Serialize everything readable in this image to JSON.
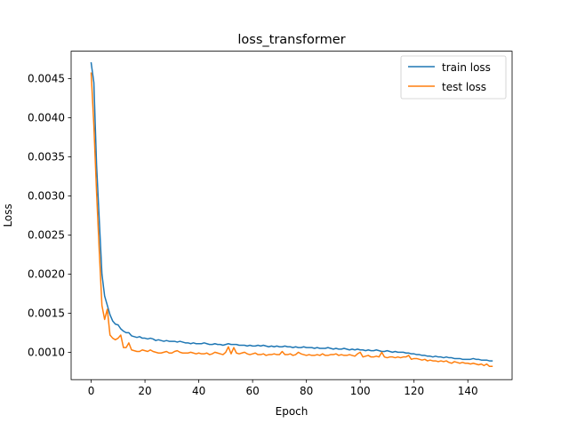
{
  "chart_data": {
    "type": "line",
    "title": "loss_transformer",
    "xlabel": "Epoch",
    "ylabel": "Loss",
    "xlim": [
      -7.45,
      156.45
    ],
    "ylim": [
      0.00065,
      0.00485
    ],
    "x_ticks": [
      0,
      20,
      40,
      60,
      80,
      100,
      120,
      140
    ],
    "x_tick_labels": [
      "0",
      "20",
      "40",
      "60",
      "80",
      "100",
      "120",
      "140"
    ],
    "y_ticks": [
      0.001,
      0.0015,
      0.002,
      0.0025,
      0.003,
      0.0035,
      0.004,
      0.0045
    ],
    "y_tick_labels": [
      "0.0010",
      "0.0015",
      "0.0020",
      "0.0025",
      "0.0030",
      "0.0035",
      "0.0040",
      "0.0045"
    ],
    "grid": false,
    "legend_position": "top-right",
    "series": [
      {
        "name": "train loss",
        "color": "#1f77b4",
        "x": [
          0,
          1,
          2,
          3,
          4,
          5,
          6,
          7,
          8,
          9,
          10,
          11,
          12,
          13,
          14,
          15,
          16,
          17,
          18,
          19,
          20,
          21,
          22,
          23,
          24,
          25,
          26,
          27,
          28,
          29,
          30,
          31,
          32,
          33,
          34,
          35,
          36,
          37,
          38,
          39,
          40,
          41,
          42,
          43,
          44,
          45,
          46,
          47,
          48,
          49,
          50,
          51,
          52,
          53,
          54,
          55,
          56,
          57,
          58,
          59,
          60,
          61,
          62,
          63,
          64,
          65,
          66,
          67,
          68,
          69,
          70,
          71,
          72,
          73,
          74,
          75,
          76,
          77,
          78,
          79,
          80,
          81,
          82,
          83,
          84,
          85,
          86,
          87,
          88,
          89,
          90,
          91,
          92,
          93,
          94,
          95,
          96,
          97,
          98,
          99,
          100,
          101,
          102,
          103,
          104,
          105,
          106,
          107,
          108,
          109,
          110,
          111,
          112,
          113,
          114,
          115,
          116,
          117,
          118,
          119,
          120,
          121,
          122,
          123,
          124,
          125,
          126,
          127,
          128,
          129,
          130,
          131,
          132,
          133,
          134,
          135,
          136,
          137,
          138,
          139,
          140,
          141,
          142,
          143,
          144,
          145,
          146,
          147,
          148,
          149
        ],
        "y": [
          0.0047,
          0.00445,
          0.0034,
          0.0027,
          0.002,
          0.00172,
          0.0016,
          0.00148,
          0.0014,
          0.00136,
          0.00135,
          0.0013,
          0.00127,
          0.00125,
          0.00125,
          0.00121,
          0.0012,
          0.00119,
          0.0012,
          0.00118,
          0.00118,
          0.00117,
          0.00118,
          0.00117,
          0.00115,
          0.00116,
          0.00115,
          0.00114,
          0.00115,
          0.00114,
          0.00114,
          0.00114,
          0.00113,
          0.00114,
          0.00113,
          0.00112,
          0.00112,
          0.00111,
          0.00112,
          0.00111,
          0.00111,
          0.00111,
          0.00112,
          0.00111,
          0.0011,
          0.0011,
          0.00111,
          0.0011,
          0.0011,
          0.00109,
          0.0011,
          0.00111,
          0.0011,
          0.0011,
          0.0011,
          0.00109,
          0.00109,
          0.00109,
          0.00108,
          0.00109,
          0.00108,
          0.00108,
          0.00109,
          0.00108,
          0.00109,
          0.00108,
          0.00107,
          0.00108,
          0.00107,
          0.00108,
          0.00107,
          0.00107,
          0.00108,
          0.00107,
          0.00107,
          0.00106,
          0.00107,
          0.00106,
          0.00106,
          0.00107,
          0.00106,
          0.00106,
          0.00106,
          0.00105,
          0.00106,
          0.00105,
          0.00105,
          0.00105,
          0.00106,
          0.00105,
          0.00104,
          0.00105,
          0.00104,
          0.00104,
          0.00105,
          0.00104,
          0.00103,
          0.00104,
          0.00103,
          0.00104,
          0.00103,
          0.00103,
          0.00102,
          0.00103,
          0.00102,
          0.00102,
          0.00103,
          0.00102,
          0.00101,
          0.00101,
          0.00102,
          0.00101,
          0.001,
          0.00101,
          0.001,
          0.001,
          0.001,
          0.00099,
          0.00099,
          0.00098,
          0.00098,
          0.00097,
          0.00097,
          0.00096,
          0.00096,
          0.00095,
          0.00095,
          0.00094,
          0.00095,
          0.00094,
          0.00094,
          0.00093,
          0.00094,
          0.00093,
          0.00093,
          0.00092,
          0.00092,
          0.00092,
          0.00091,
          0.00091,
          0.00091,
          0.00091,
          0.00092,
          0.00091,
          0.00091,
          0.0009,
          0.0009,
          0.0009,
          0.00089,
          0.00089
        ]
      },
      {
        "name": "test loss",
        "color": "#ff7f0e",
        "x": [
          0,
          1,
          2,
          3,
          4,
          5,
          6,
          7,
          8,
          9,
          10,
          11,
          12,
          13,
          14,
          15,
          16,
          17,
          18,
          19,
          20,
          21,
          22,
          23,
          24,
          25,
          26,
          27,
          28,
          29,
          30,
          31,
          32,
          33,
          34,
          35,
          36,
          37,
          38,
          39,
          40,
          41,
          42,
          43,
          44,
          45,
          46,
          47,
          48,
          49,
          50,
          51,
          52,
          53,
          54,
          55,
          56,
          57,
          58,
          59,
          60,
          61,
          62,
          63,
          64,
          65,
          66,
          67,
          68,
          69,
          70,
          71,
          72,
          73,
          74,
          75,
          76,
          77,
          78,
          79,
          80,
          81,
          82,
          83,
          84,
          85,
          86,
          87,
          88,
          89,
          90,
          91,
          92,
          93,
          94,
          95,
          96,
          97,
          98,
          99,
          100,
          101,
          102,
          103,
          104,
          105,
          106,
          107,
          108,
          109,
          110,
          111,
          112,
          113,
          114,
          115,
          116,
          117,
          118,
          119,
          120,
          121,
          122,
          123,
          124,
          125,
          126,
          127,
          128,
          129,
          130,
          131,
          132,
          133,
          134,
          135,
          136,
          137,
          138,
          139,
          140,
          141,
          142,
          143,
          144,
          145,
          146,
          147,
          148,
          149
        ],
        "y": [
          0.00457,
          0.0039,
          0.00305,
          0.0023,
          0.0016,
          0.00142,
          0.00155,
          0.00122,
          0.00118,
          0.00116,
          0.00118,
          0.00122,
          0.00106,
          0.00106,
          0.00112,
          0.00103,
          0.00102,
          0.00101,
          0.00101,
          0.00103,
          0.00102,
          0.00101,
          0.00103,
          0.00101,
          0.001,
          0.00099,
          0.00099,
          0.001,
          0.00101,
          0.00099,
          0.00099,
          0.00101,
          0.00102,
          0.001,
          0.00099,
          0.00099,
          0.00099,
          0.001,
          0.00099,
          0.00098,
          0.00099,
          0.00098,
          0.00098,
          0.00099,
          0.00097,
          0.00098,
          0.001,
          0.00099,
          0.00098,
          0.00097,
          0.001,
          0.00107,
          0.00098,
          0.00106,
          0.00099,
          0.00098,
          0.00099,
          0.001,
          0.00098,
          0.00097,
          0.00098,
          0.00099,
          0.00097,
          0.00097,
          0.00098,
          0.00096,
          0.00097,
          0.00097,
          0.00098,
          0.00097,
          0.00097,
          0.00101,
          0.00097,
          0.00097,
          0.00098,
          0.00096,
          0.00097,
          0.001,
          0.00098,
          0.00097,
          0.00096,
          0.00097,
          0.00096,
          0.00096,
          0.00097,
          0.00096,
          0.00098,
          0.00096,
          0.00096,
          0.00097,
          0.00097,
          0.00098,
          0.00096,
          0.00097,
          0.00096,
          0.00096,
          0.00097,
          0.00096,
          0.00095,
          0.00098,
          0.001,
          0.00094,
          0.00095,
          0.00096,
          0.00094,
          0.00094,
          0.00095,
          0.00094,
          0.001,
          0.00094,
          0.00093,
          0.00094,
          0.00094,
          0.00093,
          0.00094,
          0.00093,
          0.00094,
          0.00094,
          0.00096,
          0.00091,
          0.00092,
          0.00092,
          0.00091,
          0.0009,
          0.00091,
          0.00089,
          0.0009,
          0.00089,
          0.00089,
          0.00088,
          0.00089,
          0.00088,
          0.00089,
          0.00087,
          0.00086,
          0.00088,
          0.00087,
          0.00086,
          0.00087,
          0.00086,
          0.00086,
          0.00085,
          0.00086,
          0.00085,
          0.00084,
          0.00085,
          0.00083,
          0.00085,
          0.00082,
          0.00082
        ]
      }
    ]
  }
}
